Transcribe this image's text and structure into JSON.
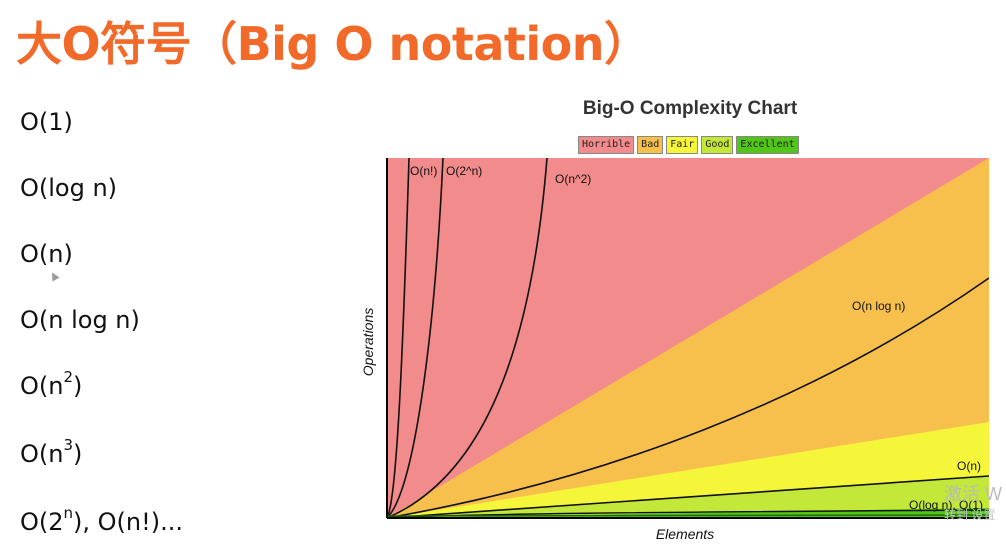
{
  "slide": {
    "title": "大O符号（Big O notation）",
    "notations": [
      {
        "base": "O(1)",
        "sup": "",
        "tail": ""
      },
      {
        "base": "O(log n)",
        "sup": "",
        "tail": ""
      },
      {
        "base": "O(n)",
        "sup": "",
        "tail": ""
      },
      {
        "base": "O(n log n)",
        "sup": "",
        "tail": ""
      },
      {
        "base": "O(n",
        "sup": "2",
        "tail": ")"
      },
      {
        "base": "O(n",
        "sup": "3",
        "tail": ")"
      },
      {
        "base": "O(2",
        "sup": "n",
        "tail": "), O(n!)..."
      }
    ]
  },
  "watermark": {
    "line1": "激活 W",
    "line2": "转到 设置"
  },
  "chart_data": {
    "type": "area",
    "title": "Big-O Complexity Chart",
    "xlabel": "Elements",
    "ylabel": "Operations",
    "legend": [
      {
        "label": "Horrible",
        "color": "#f28b8b"
      },
      {
        "label": "Bad",
        "color": "#f7c04d"
      },
      {
        "label": "Fair",
        "color": "#f5f53a"
      },
      {
        "label": "Good",
        "color": "#c3e83a"
      },
      {
        "label": "Excellent",
        "color": "#52c41a"
      }
    ],
    "curves": [
      {
        "label": "O(n!)"
      },
      {
        "label": "O(2^n)"
      },
      {
        "label": "O(n^2)"
      },
      {
        "label": "O(n log n)"
      },
      {
        "label": "O(n)"
      },
      {
        "label": "O(log n), O(1)"
      }
    ]
  }
}
